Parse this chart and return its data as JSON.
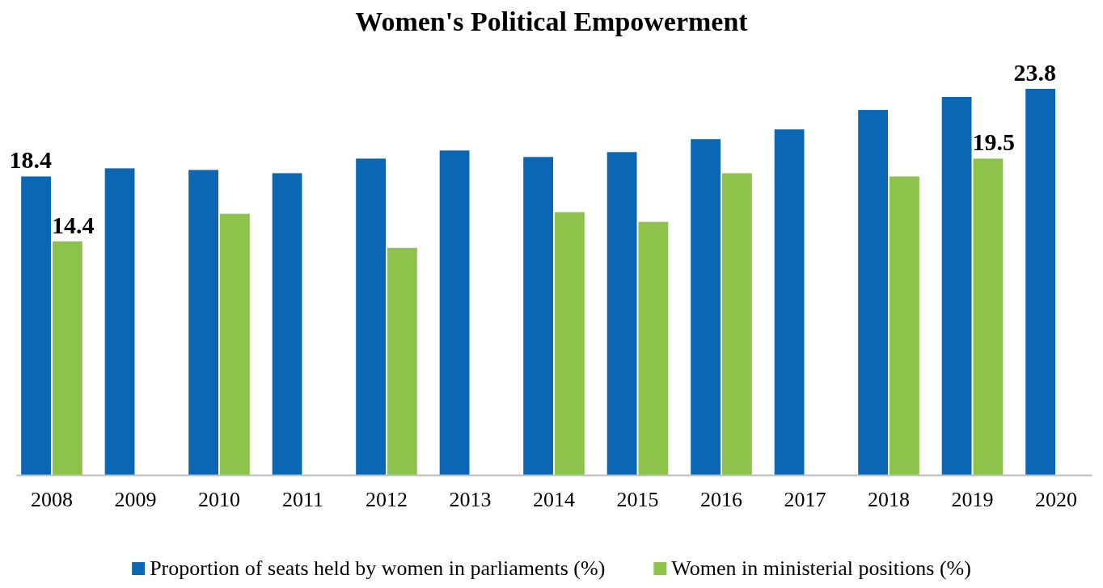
{
  "chart_data": {
    "type": "bar",
    "title": "Women's Political Empowerment",
    "categories": [
      "2008",
      "2009",
      "2010",
      "2011",
      "2012",
      "2013",
      "2014",
      "2015",
      "2016",
      "2017",
      "2018",
      "2019",
      "2020"
    ],
    "series": [
      {
        "name": "Proportion of seats held by women in parliaments (%)",
        "color": "#0b67b3",
        "values": [
          18.4,
          18.9,
          18.8,
          18.6,
          19.5,
          20.0,
          19.6,
          19.9,
          20.7,
          21.3,
          22.5,
          23.3,
          23.8
        ],
        "value_labels": [
          "18.4",
          null,
          null,
          null,
          null,
          null,
          null,
          null,
          null,
          null,
          null,
          null,
          "23.8"
        ]
      },
      {
        "name": "Women in ministerial positions (%)",
        "color": "#8dc34a",
        "values": [
          14.4,
          null,
          16.1,
          null,
          14.0,
          null,
          16.2,
          15.6,
          18.6,
          null,
          18.4,
          19.5,
          null
        ],
        "value_labels": [
          "14.4",
          null,
          null,
          null,
          null,
          null,
          null,
          null,
          null,
          null,
          null,
          "19.5",
          null
        ]
      }
    ],
    "legend": "bottom"
  }
}
